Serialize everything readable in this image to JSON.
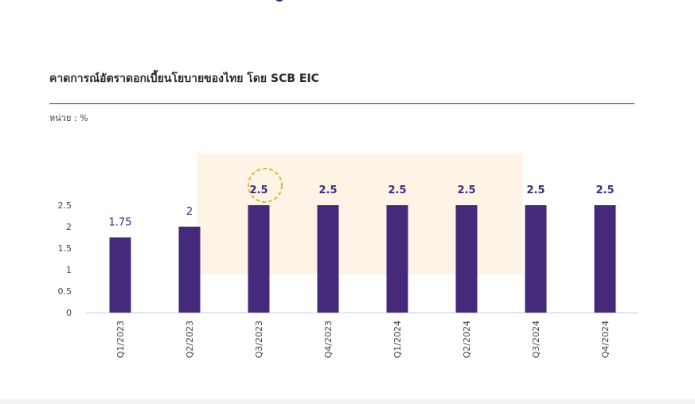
{
  "header": {
    "title": "คาดการณ์อัตราดอกเบี้ยนโยบายของไทย โดย SCB EIC",
    "unit": "หน่วย : %"
  },
  "colors": {
    "bar": "#452a7b",
    "label": "#3d2a7a",
    "highlight": "#fdf4e6",
    "circle": "#e8b33c",
    "axis": "#cccccc"
  },
  "chart_data": {
    "type": "bar",
    "categories": [
      "Q1/2023",
      "Q2/2023",
      "Q3/2023",
      "Q4/2023",
      "Q1/2024",
      "Q2/2024",
      "Q3/2024",
      "Q4/2024"
    ],
    "values": [
      1.75,
      2,
      2.5,
      2.5,
      2.5,
      2.5,
      2.5,
      2.5
    ],
    "value_labels": [
      "1.75",
      "2",
      "2.5",
      "2.5",
      "2.5",
      "2.5",
      "2.5",
      "2.5"
    ],
    "yticks": [
      "0",
      "0.5",
      "1",
      "1.5",
      "2",
      "2.5"
    ],
    "ylim": [
      0,
      2.5
    ],
    "title": "",
    "xlabel": "",
    "ylabel": "",
    "grid": false,
    "highlight_categories": [
      "Q3/2023",
      "Q2/2024"
    ],
    "circled_category": "Q3/2023"
  }
}
